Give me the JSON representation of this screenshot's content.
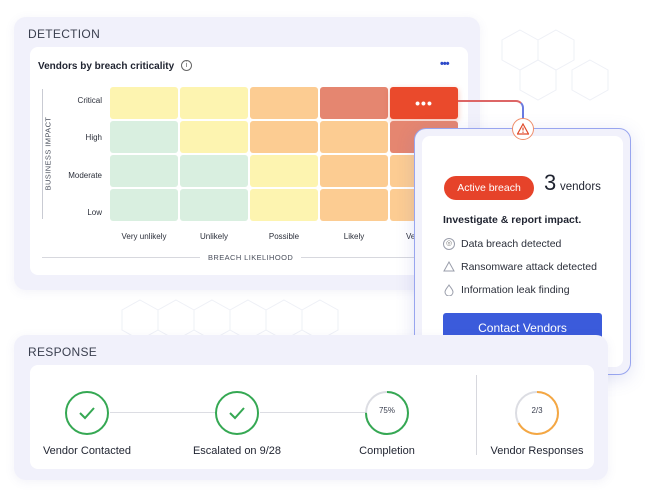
{
  "detection": {
    "section_title": "DETECTION",
    "card_title": "Vendors by breach criticality",
    "info_icon": "info-icon",
    "more_icon": "more-dots-icon",
    "y_axis_title": "BUSINESS IMPACT",
    "x_axis_title": "BREACH LIKELIHOOD",
    "rows": [
      "Critical",
      "High",
      "Moderate",
      "Low"
    ],
    "columns": [
      "Very unlikely",
      "Unlikely",
      "Possible",
      "Likely",
      "Very likely"
    ],
    "active_cell_glyph": "•••",
    "colors": {
      "green": "#d9efe0",
      "yellow": "#fdf4b0",
      "light_orange": "#fccc92",
      "orange": "#f7b484",
      "red": "#e58670",
      "active_red": "#ea4a2c"
    }
  },
  "popup": {
    "status_label": "Active breach",
    "vendor_count": "3",
    "vendor_unit": "vendors",
    "headline": "Investigate & report impact.",
    "findings": [
      {
        "icon": "data-breach-icon",
        "label": "Data breach detected"
      },
      {
        "icon": "ransomware-icon",
        "label": "Ransomware attack detected"
      },
      {
        "icon": "leak-drop-icon",
        "label": "Information leak finding"
      }
    ],
    "button_label": "Contact Vendors",
    "warning_icon": "warning-icon"
  },
  "response": {
    "section_title": "RESPONSE",
    "steps": [
      {
        "label": "Vendor Contacted",
        "state": "done"
      },
      {
        "label": "Escalated on 9/28",
        "state": "done"
      },
      {
        "label": "Completion",
        "progress_text": "75%",
        "progress": 0.75
      },
      {
        "label": "Vendor Responses",
        "progress_text": "2/3",
        "progress": 0.67
      }
    ]
  }
}
